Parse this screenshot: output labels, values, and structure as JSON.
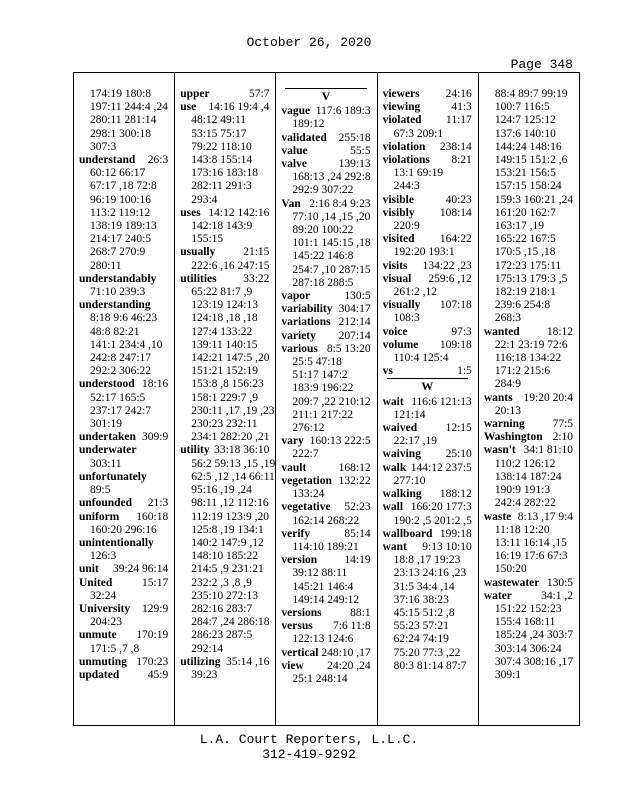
{
  "header": {
    "date": "October 26, 2020",
    "page": "Page 348"
  },
  "columns": [
    {
      "entries": [
        {
          "lines": [
            "174:19 180:8",
            "197:11 244:4 ,24",
            "280:11 281:14",
            "298:1 300:18",
            "307:3"
          ]
        },
        {
          "term": "understand",
          "same": "26:3",
          "lines": [
            "60:12 66:17",
            "67:17 ,18 72:8",
            "96:19 100:16",
            "113:2 119:12",
            "138:19 189:13",
            "214:17 240:5",
            "268:7 270:9",
            "280:11"
          ]
        },
        {
          "term": "understandably",
          "lines": [
            "71:10 239:3"
          ]
        },
        {
          "term": "understanding",
          "lines": [
            "8:18 9:6 46:23",
            "48:8 82:21",
            "141:1 234:4 ,10",
            "242:8 247:17",
            "292:2 306:22"
          ]
        },
        {
          "term": "understood",
          "same": "18:16",
          "lines": [
            "52:17 165:5",
            "237:17 242:7",
            "301:19"
          ]
        },
        {
          "term": "undertaken",
          "same": "309:9"
        },
        {
          "term": "underwater",
          "lines": [
            "303:11"
          ]
        },
        {
          "term": "unfortunately",
          "lines": [
            "89:5"
          ]
        },
        {
          "term": "unfounded",
          "same": "21:3"
        },
        {
          "term": "uniform",
          "same": "160:18",
          "lines": [
            "160:20 296:16"
          ]
        },
        {
          "term": "unintentionally",
          "lines": [
            "126:3"
          ]
        },
        {
          "term": "unit",
          "same": "39:24 96:14"
        },
        {
          "term": "United",
          "same": "15:17",
          "lines": [
            "32:24"
          ]
        },
        {
          "term": "University",
          "same": "129:9",
          "lines": [
            "204:23"
          ]
        },
        {
          "term": "unmute",
          "same": "170:19",
          "lines": [
            "171:5 ,7 ,8"
          ]
        },
        {
          "term": "unmuting",
          "same": "170:23"
        },
        {
          "term": "updated",
          "same": "45:9"
        }
      ]
    },
    {
      "entries": [
        {
          "term": "upper",
          "same": "57:7"
        },
        {
          "term": "use",
          "same": "14:16 19:4 ,4",
          "lines": [
            "48:12 49:11",
            "53:15 75:17",
            "79:22 118:10",
            "143:8 155:14",
            "173:16 183:18",
            "282:11 291:3",
            "293:4"
          ]
        },
        {
          "term": "uses",
          "same": "14:12 142:16",
          "lines": [
            "142:18 143:9",
            "155:15"
          ]
        },
        {
          "term": "usually",
          "same": "21:15",
          "lines": [
            "222:6 ,16 247:15"
          ]
        },
        {
          "term": "utilities",
          "same": "33:22",
          "lines": [
            "65:22 81:7 ,9",
            "123:19 124:13",
            "124:18 ,18 ,18",
            "127:4 133:22",
            "139:11 140:15",
            "142:21 147:5 ,20",
            "151:21 152:19",
            "153:8 ,8 156:23",
            "158:1 229:7 ,9",
            "230:11 ,17 ,19 ,23",
            "230:23 232:11",
            "234:1 282:20 ,21"
          ]
        },
        {
          "term": "utility",
          "same": "33:18 36:10",
          "lines": [
            "56:2 59:13 ,15 ,19",
            "62:5 ,12 ,14 66:11",
            "95:16 ,19 ,24",
            "98:11 ,12 112:16",
            "112:19 123:9 ,20",
            "125:8 ,19 134:1",
            "140:2 147:9 ,12",
            "148:10 185:22",
            "214:5 ,9 231:21",
            "232:2 ,3 ,8 ,9",
            "235:10 272:13",
            "282:16 283:7",
            "284:7 ,24 286:18",
            "286:23 287:5",
            "292:14"
          ]
        },
        {
          "term": "utilizing",
          "same": "35:14 ,16",
          "lines": [
            "39:23"
          ]
        }
      ]
    },
    {
      "entries": [
        {
          "heading": "V"
        },
        {
          "term": "vague",
          "same": "117:6 189:3",
          "lines": [
            "189:12"
          ]
        },
        {
          "term": "validated",
          "same": "255:18"
        },
        {
          "term": "value",
          "same": "55:5"
        },
        {
          "term": "valve",
          "same": "139:13",
          "lines": [
            "168:13 ,24 292:8",
            "292:9 307:22"
          ]
        },
        {
          "term": "Van",
          "same": "2:16 8:4 9:23",
          "lines": [
            "77:10 ,14 ,15 ,20",
            "89:20 100:22",
            "101:1 145:15 ,18",
            "145:22 146:8",
            "254:7 ,10 287:15",
            "287:18 288:5"
          ]
        },
        {
          "term": "vapor",
          "same": "130:5"
        },
        {
          "term": "variability",
          "same": "304:17"
        },
        {
          "term": "variations",
          "same": "212:14"
        },
        {
          "term": "variety",
          "same": "207:14"
        },
        {
          "term": "various",
          "same": "8:5 13:20",
          "lines": [
            "25:5 47:18",
            "51:17 147:2",
            "183:9 196:22",
            "209:7 ,22 210:12",
            "211:1 217:22",
            "276:12"
          ]
        },
        {
          "term": "vary",
          "same": "160:13 222:5",
          "lines": [
            "222:7"
          ]
        },
        {
          "term": "vault",
          "same": "168:12"
        },
        {
          "term": "vegetation",
          "same": "132:22",
          "lines": [
            "133:24"
          ]
        },
        {
          "term": "vegetative",
          "same": "52:23",
          "lines": [
            "162:14 268:22"
          ]
        },
        {
          "term": "verify",
          "same": "85:14",
          "lines": [
            "114:10 189:21"
          ]
        },
        {
          "term": "version",
          "same": "14:19",
          "lines": [
            "39:12 88:11",
            "145:21 146:4",
            "149:14 249:12"
          ]
        },
        {
          "term": "versions",
          "same": "88:1"
        },
        {
          "term": "versus",
          "same": "7:6 11:8",
          "lines": [
            "122:13 124:6"
          ]
        },
        {
          "term": "vertical",
          "same": "248:10 ,17"
        },
        {
          "term": "view",
          "same": "24:20 ,24",
          "lines": [
            "25:1 248:14"
          ]
        }
      ]
    },
    {
      "entries": [
        {
          "term": "viewers",
          "same": "24:16"
        },
        {
          "term": "viewing",
          "same": "41:3"
        },
        {
          "term": "violated",
          "same": "11:17",
          "lines": [
            "67:3 209:1"
          ]
        },
        {
          "term": "violation",
          "same": "238:14"
        },
        {
          "term": "violations",
          "same": "8:21",
          "lines": [
            "13:1 69:19",
            "244:3"
          ]
        },
        {
          "term": "visible",
          "same": "40:23"
        },
        {
          "term": "visibly",
          "same": "108:14",
          "lines": [
            "220:9"
          ]
        },
        {
          "term": "visited",
          "same": "164:22",
          "lines": [
            "192:20 193:1"
          ]
        },
        {
          "term": "visits",
          "same": "134:22 ,23"
        },
        {
          "term": "visual",
          "same": "259:6 ,12",
          "lines": [
            "261:2 ,12"
          ]
        },
        {
          "term": "visually",
          "same": "107:18",
          "lines": [
            "108:3"
          ]
        },
        {
          "term": "voice",
          "same": "97:3"
        },
        {
          "term": "volume",
          "same": "109:18",
          "lines": [
            "110:4 125:4"
          ]
        },
        {
          "term": "vs",
          "same": "1:5"
        },
        {
          "heading": "W"
        },
        {
          "term": "wait",
          "same": "116:6 121:13",
          "lines": [
            "121:14"
          ]
        },
        {
          "term": "waived",
          "same": "12:15",
          "lines": [
            "22:17 ,19"
          ]
        },
        {
          "term": "waiving",
          "same": "25:10"
        },
        {
          "term": "walk",
          "same": "144:12 237:5",
          "lines": [
            "277:10"
          ]
        },
        {
          "term": "walking",
          "same": "188:12"
        },
        {
          "term": "wall",
          "same": "166:20 177:3",
          "lines": [
            "190:2 ,5 201:2 ,5"
          ]
        },
        {
          "term": "wallboard",
          "same": "199:18"
        },
        {
          "term": "want",
          "same": "9:13 10:10",
          "lines": [
            "18:8 ,17 19:23",
            "23:13 24:16 ,23",
            "31:5 34:4 ,14",
            "37:16 38:23",
            "45:15 51:2 ,8",
            "55:23 57:21",
            "62:24 74:19",
            "75:20 77:3 ,22",
            "80:3 81:14 87:7"
          ]
        }
      ]
    },
    {
      "entries": [
        {
          "lines": [
            "88:4 89:7 99:19",
            "100:7 116:5",
            "124:7 125:12",
            "137:6 140:10",
            "144:24 148:16",
            "149:15 151:2 ,6",
            "153:21 156:5",
            "157:15 158:24",
            "159:3 160:21 ,24",
            "161:20 162:7",
            "163:17 ,19",
            "165:22 167:5",
            "170:5 ,15 ,18",
            "172:23 175:11",
            "175:13 179:3 ,5",
            "182:19 218:1",
            "239:6 254:8",
            "268:3"
          ]
        },
        {
          "term": "wanted",
          "same": "18:12",
          "lines": [
            "22:1 23:19 72:6",
            "116:18 134:22",
            "171:2 215:6",
            "284:9"
          ]
        },
        {
          "term": "wants",
          "same": "19:20 20:4",
          "lines": [
            "20:13"
          ]
        },
        {
          "term": "warning",
          "same": "77:5"
        },
        {
          "term": "Washington",
          "same": "2:10"
        },
        {
          "term": "wasn't",
          "same": "34:1 81:10",
          "lines": [
            "110:2 126:12",
            "138:14 187:24",
            "190:9 191:3",
            "242:4 282:22"
          ]
        },
        {
          "term": "waste",
          "same": "8:13 ,17 9:4",
          "lines": [
            "11:18 12:20",
            "13:11 16:14 ,15",
            "16:19 17:6 67:3",
            "150:20"
          ]
        },
        {
          "term": "wastewater",
          "same": "130:5"
        },
        {
          "term": "water",
          "same": "34:1 ,2",
          "lines": [
            "151:22 152:23",
            "155:4 168:11",
            "185:24 ,24 303:7",
            "303:14 306:24",
            "307:4 308:16 ,17",
            "309:1"
          ]
        }
      ]
    }
  ],
  "footer": {
    "company": "L.A. Court Reporters, L.L.C.",
    "phone": "312-419-9292"
  }
}
